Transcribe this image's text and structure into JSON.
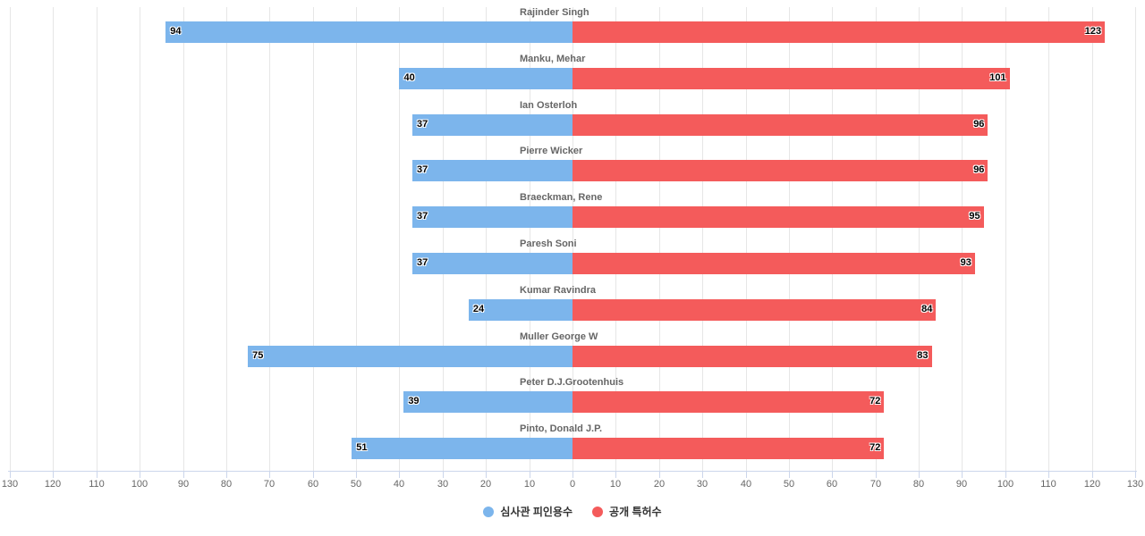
{
  "chart_data": {
    "type": "bar",
    "orientation": "horizontal",
    "layout": "population-pyramid (diverging)",
    "categories": [
      "Rajinder Singh",
      "Manku, Mehar",
      "Ian Osterloh",
      "Pierre Wicker",
      "Braeckman, Rene",
      "Paresh Soni",
      "Kumar Ravindra",
      "Muller George W",
      "Peter D.J.Grootenhuis",
      "Pinto, Donald J.P."
    ],
    "series": [
      {
        "name": "심사관 피인용수",
        "color": "#7cb5ec",
        "side": "left",
        "values": [
          94,
          40,
          37,
          37,
          37,
          37,
          24,
          75,
          39,
          51
        ]
      },
      {
        "name": "공개 특허수",
        "color": "#f45b5b",
        "side": "right",
        "values": [
          123,
          101,
          96,
          96,
          95,
          93,
          84,
          83,
          72,
          72
        ]
      }
    ],
    "title": "",
    "xlabel": "",
    "ylabel": "",
    "xlim": [
      -130,
      130
    ],
    "x_ticks": [
      "130",
      "120",
      "110",
      "100",
      "90",
      "80",
      "70",
      "60",
      "50",
      "40",
      "30",
      "20",
      "10",
      "0",
      "10",
      "20",
      "30",
      "40",
      "50",
      "60",
      "70",
      "80",
      "90",
      "100",
      "110",
      "120",
      "130"
    ],
    "grid": true,
    "data_labels": true,
    "legend_position": "bottom-center"
  },
  "legend": [
    {
      "label": "심사관 피인용수",
      "color": "#7cb5ec"
    },
    {
      "label": "공개 특허수",
      "color": "#f45b5b"
    }
  ]
}
